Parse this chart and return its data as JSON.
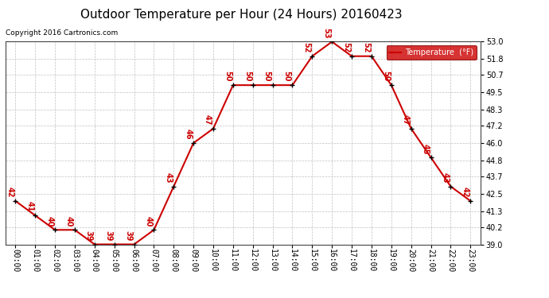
{
  "title": "Outdoor Temperature per Hour (24 Hours) 20160423",
  "copyright": "Copyright 2016 Cartronics.com",
  "legend_label": "Temperature  (°F)",
  "hours": [
    "00:00",
    "01:00",
    "02:00",
    "03:00",
    "04:00",
    "05:00",
    "06:00",
    "07:00",
    "08:00",
    "09:00",
    "10:00",
    "11:00",
    "12:00",
    "13:00",
    "14:00",
    "15:00",
    "16:00",
    "17:00",
    "18:00",
    "19:00",
    "20:00",
    "21:00",
    "22:00",
    "23:00"
  ],
  "temperatures": [
    42,
    41,
    40,
    40,
    39,
    39,
    39,
    40,
    43,
    46,
    47,
    50,
    50,
    50,
    50,
    52,
    53,
    52,
    52,
    50,
    47,
    45,
    43,
    42
  ],
  "ylim": [
    39.0,
    53.0
  ],
  "yticks": [
    39.0,
    40.2,
    41.3,
    42.5,
    43.7,
    44.8,
    46.0,
    47.2,
    48.3,
    49.5,
    50.7,
    51.8,
    53.0
  ],
  "line_color": "#cc0000",
  "marker_color": "#000000",
  "label_color": "#cc0000",
  "grid_color": "#c0c0c0",
  "background_color": "#ffffff",
  "title_fontsize": 11,
  "tick_fontsize": 7,
  "legend_bg": "#cc0000",
  "legend_fg": "#ffffff",
  "fig_width": 6.9,
  "fig_height": 3.75,
  "dpi": 100
}
